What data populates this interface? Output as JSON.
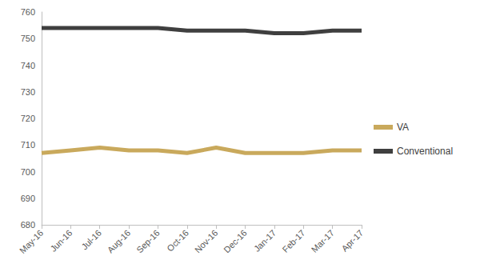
{
  "chart_data": {
    "type": "line",
    "categories": [
      "May-16",
      "Jun-16",
      "Jul-16",
      "Aug-16",
      "Sep-16",
      "Oct-16",
      "Nov-16",
      "Dec-16",
      "Jan-17",
      "Feb-17",
      "Mar-17",
      "Apr-17"
    ],
    "series": [
      {
        "name": "VA",
        "color": "#c9a95c",
        "values": [
          707,
          708,
          709,
          708,
          708,
          707,
          709,
          707,
          707,
          707,
          708,
          708
        ]
      },
      {
        "name": "Conventional",
        "color": "#3f3f3f",
        "values": [
          754,
          754,
          754,
          754,
          754,
          753,
          753,
          753,
          752,
          752,
          753,
          753
        ]
      }
    ],
    "ylim": [
      680,
      760
    ],
    "yticks": [
      680,
      690,
      700,
      710,
      720,
      730,
      740,
      750,
      760
    ],
    "grid": false,
    "legend": "right"
  }
}
